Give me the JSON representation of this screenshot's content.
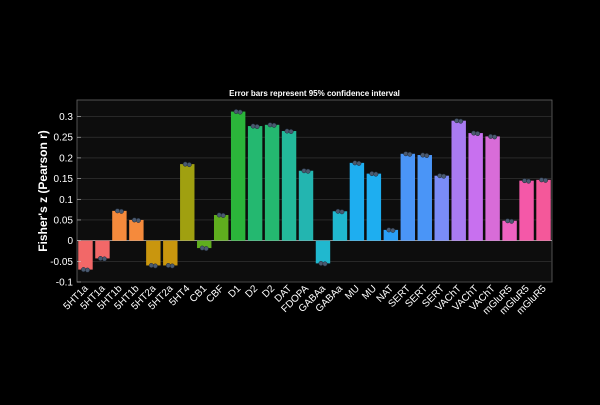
{
  "chart_data": {
    "type": "bar",
    "title": "Error bars represent 95% confidence interval",
    "xlabel": "",
    "ylabel": "Fisher's z (Pearson r)",
    "ylim": [
      -0.1,
      0.34
    ],
    "yticks": [
      -0.1,
      -0.05,
      0,
      0.05,
      0.1,
      0.15,
      0.2,
      0.25,
      0.3
    ],
    "ytick_labels": [
      "-0.1",
      "-0.05",
      "0",
      "0.05",
      "0.1",
      "0.15",
      "0.2",
      "0.25",
      "0.3"
    ],
    "grid": true,
    "categories": [
      "5HT1a",
      "5HT1a",
      "5HT1b",
      "5HT1b",
      "5HT2a",
      "5HT2a",
      "5HT4",
      "CB1",
      "CBF",
      "D1",
      "D2",
      "D2",
      "DAT",
      "FDOPA",
      "GABAa",
      "GABAa",
      "MU",
      "MU",
      "NAT",
      "SERT",
      "SERT",
      "SERT",
      "VAChT",
      "VAChT",
      "VAChT",
      "mGluR5",
      "mGluR5",
      "mGluR5"
    ],
    "values": [
      -0.07,
      -0.043,
      0.072,
      0.05,
      -0.06,
      -0.06,
      0.185,
      -0.018,
      0.062,
      0.312,
      0.277,
      0.28,
      0.265,
      0.169,
      -0.055,
      0.071,
      0.188,
      0.162,
      0.026,
      0.21,
      0.207,
      0.157,
      0.29,
      0.26,
      0.252,
      0.048,
      0.145,
      0.147
    ],
    "colors": [
      "#f26868",
      "#f26868",
      "#f58a3c",
      "#f58a3c",
      "#c9960e",
      "#c9960e",
      "#a0a010",
      "#5fae1e",
      "#5fae1e",
      "#2bb53a",
      "#24b870",
      "#24b870",
      "#23b89a",
      "#23b5b0",
      "#20b8cf",
      "#20b8cf",
      "#1eaef0",
      "#1eaef0",
      "#2a9ff5",
      "#4a95f7",
      "#4a95f7",
      "#7a8cf7",
      "#a97bf2",
      "#c870ef",
      "#d86cd8",
      "#ee62c0",
      "#f458a8",
      "#f4589a"
    ]
  }
}
